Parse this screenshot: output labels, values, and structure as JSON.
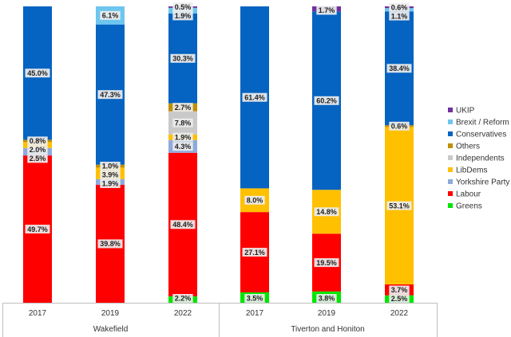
{
  "chart_data": {
    "type": "bar",
    "stacked": true,
    "percent_scale": true,
    "groups": [
      {
        "label": "Wakefield",
        "categories": [
          "2017",
          "2019",
          "2022"
        ]
      },
      {
        "label": "Tiverton and Honiton",
        "categories": [
          "2017",
          "2019",
          "2022"
        ]
      }
    ],
    "colors": {
      "Greens": "#00e600",
      "Labour": "#ff0000",
      "Yorkshire Party": "#8faadc",
      "LibDems": "#ffc000",
      "Independents": "#c9c9c9",
      "Others": "#c09000",
      "Conservatives": "#0563c1",
      "Brexit / Reform": "#6ec6ee",
      "UKIP": "#7030a0"
    },
    "legend": {
      "position": "right",
      "items": [
        "UKIP",
        "Brexit / Reform",
        "Conservatives",
        "Others",
        "Independents",
        "LibDems",
        "Yorkshire Party",
        "Labour",
        "Greens"
      ]
    },
    "stack_order": [
      "Greens",
      "Labour",
      "Yorkshire Party",
      "LibDems",
      "Independents",
      "Others",
      "Conservatives",
      "Brexit / Reform",
      "UKIP"
    ],
    "bars": [
      {
        "group": "Wakefield",
        "year": "2017",
        "segments": [
          {
            "party": "Labour",
            "value": 49.7,
            "label": "49.7%"
          },
          {
            "party": "Yorkshire Party",
            "value": 2.5,
            "label": "2.5%"
          },
          {
            "party": "LibDems",
            "value": 2.0,
            "label": "2.0%"
          },
          {
            "party": "Others",
            "value": 0.8,
            "label": "0.8%"
          },
          {
            "party": "Conservatives",
            "value": 45.0,
            "label": "45.0%"
          }
        ]
      },
      {
        "group": "Wakefield",
        "year": "2019",
        "segments": [
          {
            "party": "Labour",
            "value": 39.8,
            "label": "39.8%"
          },
          {
            "party": "Yorkshire Party",
            "value": 1.9,
            "label": "1.9%"
          },
          {
            "party": "LibDems",
            "value": 3.9,
            "label": "3.9%"
          },
          {
            "party": "Others",
            "value": 1.0,
            "label": "1.0%"
          },
          {
            "party": "Conservatives",
            "value": 47.3,
            "label": "47.3%"
          },
          {
            "party": "Brexit / Reform",
            "value": 6.1,
            "label": "6.1%"
          }
        ]
      },
      {
        "group": "Wakefield",
        "year": "2022",
        "segments": [
          {
            "party": "Greens",
            "value": 2.2,
            "label": "2.2%"
          },
          {
            "party": "Labour",
            "value": 48.4,
            "label": "48.4%"
          },
          {
            "party": "Yorkshire Party",
            "value": 4.3,
            "label": "4.3%"
          },
          {
            "party": "LibDems",
            "value": 1.9,
            "label": "1.9%"
          },
          {
            "party": "Independents",
            "value": 7.8,
            "label": "7.8%"
          },
          {
            "party": "Others",
            "value": 2.7,
            "label": "2.7%"
          },
          {
            "party": "Conservatives",
            "value": 30.3,
            "label": "30.3%"
          },
          {
            "party": "Brexit / Reform",
            "value": 1.9,
            "label": "1.9%"
          },
          {
            "party": "UKIP",
            "value": 0.5,
            "label": "0.5%"
          }
        ]
      },
      {
        "group": "Tiverton and Honiton",
        "year": "2017",
        "segments": [
          {
            "party": "Greens",
            "value": 3.5,
            "label": "3.5%"
          },
          {
            "party": "Labour",
            "value": 27.1,
            "label": "27.1%"
          },
          {
            "party": "LibDems",
            "value": 8.0,
            "label": "8.0%"
          },
          {
            "party": "Conservatives",
            "value": 61.4,
            "label": "61.4%"
          }
        ]
      },
      {
        "group": "Tiverton and Honiton",
        "year": "2019",
        "segments": [
          {
            "party": "Greens",
            "value": 3.8,
            "label": "3.8%"
          },
          {
            "party": "Labour",
            "value": 19.5,
            "label": "19.5%"
          },
          {
            "party": "LibDems",
            "value": 14.8,
            "label": "14.8%"
          },
          {
            "party": "Conservatives",
            "value": 60.2,
            "label": "60.2%"
          },
          {
            "party": "UKIP",
            "value": 1.7,
            "label": "1.7%"
          }
        ]
      },
      {
        "group": "Tiverton and Honiton",
        "year": "2022",
        "segments": [
          {
            "party": "Greens",
            "value": 2.5,
            "label": "2.5%"
          },
          {
            "party": "Labour",
            "value": 3.7,
            "label": "3.7%"
          },
          {
            "party": "LibDems",
            "value": 53.1,
            "label": "53.1%"
          },
          {
            "party": "Others",
            "value": 0.6,
            "label": "0.6%"
          },
          {
            "party": "Conservatives",
            "value": 38.4,
            "label": "38.4%"
          },
          {
            "party": "Brexit / Reform",
            "value": 1.1,
            "label": "1.1%"
          },
          {
            "party": "UKIP",
            "value": 0.6,
            "label": "0.6%"
          }
        ]
      }
    ]
  }
}
